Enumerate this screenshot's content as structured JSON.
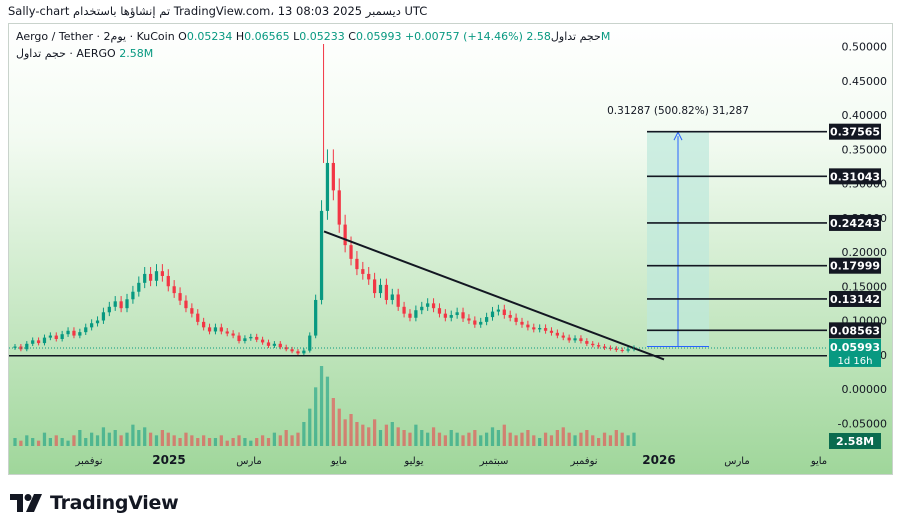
{
  "header": {
    "title_line": "Sally-chart تم إنشاؤها باستخدام TradingView.com، 13 ديسمبر 2025 08:03 UTC"
  },
  "legend": {
    "symbol": "Aergo / Tether · 2يوم · KuCoin",
    "open_label": "O",
    "open": "0.05234",
    "high_label": "H",
    "high": "0.06565",
    "low_label": "L",
    "low": "0.05233",
    "close_label": "C",
    "close": "0.05993",
    "change": "+0.00757 (+14.46%)",
    "volume_label": "حجم تداول",
    "volume": "2.58M",
    "line2_label": "حجم تداول · AERGO",
    "line2_value": "2.58M"
  },
  "colors": {
    "background_top": "#ffffff",
    "background_bottom": "#9fd69a",
    "up": "#089981",
    "down": "#f23645",
    "trendline": "#131722",
    "projection_fill": "#bde8dc",
    "projection_arrow": "#2962ff"
  },
  "chart_data": {
    "type": "candlestick",
    "price_axis_ticks": [
      "0.50000",
      "0.45000",
      "0.40000",
      "0.35000",
      "0.30000",
      "0.25000",
      "0.20000",
      "0.15000",
      "0.10000",
      "0.05000",
      "0.00000",
      "-0.05000"
    ],
    "time_axis_ticks": [
      "نوفمبر",
      "2025",
      "مارس",
      "مايو",
      "يوليو",
      "سبتمبر",
      "نوفمبر",
      "2026",
      "مارس",
      "مايو"
    ],
    "price_range": [
      -0.1,
      0.55
    ],
    "levels": [
      {
        "label": "0.37565",
        "value": 0.37565
      },
      {
        "label": "0.31043",
        "value": 0.31043
      },
      {
        "label": "0.24243",
        "value": 0.24243
      },
      {
        "label": "0.17999",
        "value": 0.17999
      },
      {
        "label": "0.13142",
        "value": 0.13142
      },
      {
        "label": "0.08563",
        "value": 0.08563
      },
      {
        "label": "0.04854",
        "value": 0.04854
      }
    ],
    "last_price": {
      "label": "0.05993",
      "value": 0.05993,
      "countdown": "1d 16h"
    },
    "projection_label": "0.31287 (500.82%) 31,287",
    "projection_from": 0.062,
    "projection_to": 0.375,
    "volume_badge": "2.58M",
    "trendline": {
      "from_value": 0.23,
      "to_value": 0.049
    },
    "support_value": 0.0485,
    "price_series": [
      0.062,
      0.058,
      0.066,
      0.071,
      0.067,
      0.075,
      0.078,
      0.073,
      0.08,
      0.085,
      0.078,
      0.083,
      0.09,
      0.096,
      0.1,
      0.112,
      0.12,
      0.128,
      0.118,
      0.131,
      0.142,
      0.155,
      0.168,
      0.158,
      0.172,
      0.165,
      0.15,
      0.14,
      0.129,
      0.118,
      0.11,
      0.098,
      0.09,
      0.084,
      0.09,
      0.084,
      0.081,
      0.078,
      0.07,
      0.074,
      0.076,
      0.072,
      0.068,
      0.063,
      0.066,
      0.061,
      0.058,
      0.055,
      0.052,
      0.056,
      0.078,
      0.13,
      0.26,
      0.33,
      0.29,
      0.24,
      0.21,
      0.19,
      0.175,
      0.168,
      0.16,
      0.14,
      0.152,
      0.13,
      0.138,
      0.12,
      0.11,
      0.104,
      0.115,
      0.12,
      0.125,
      0.118,
      0.11,
      0.104,
      0.108,
      0.112,
      0.103,
      0.1,
      0.094,
      0.098,
      0.105,
      0.113,
      0.116,
      0.108,
      0.104,
      0.098,
      0.094,
      0.09,
      0.087,
      0.089,
      0.085,
      0.082,
      0.078,
      0.075,
      0.071,
      0.074,
      0.07,
      0.066,
      0.064,
      0.062,
      0.06,
      0.059,
      0.057,
      0.056,
      0.058,
      0.06
    ],
    "volume_series": [
      3,
      2,
      4,
      3,
      2,
      5,
      3,
      4,
      3,
      2,
      4,
      6,
      3,
      5,
      4,
      7,
      5,
      6,
      4,
      5,
      8,
      6,
      7,
      5,
      4,
      6,
      5,
      4,
      3,
      5,
      4,
      3,
      4,
      3,
      3,
      4,
      2,
      3,
      4,
      3,
      2,
      3,
      4,
      3,
      5,
      4,
      6,
      4,
      5,
      9,
      14,
      22,
      30,
      26,
      18,
      14,
      10,
      12,
      9,
      8,
      7,
      10,
      6,
      8,
      9,
      7,
      6,
      5,
      8,
      6,
      5,
      7,
      5,
      4,
      6,
      5,
      4,
      5,
      6,
      4,
      5,
      7,
      6,
      8,
      5,
      4,
      5,
      6,
      4,
      3,
      5,
      4,
      6,
      7,
      5,
      4,
      5,
      6,
      4,
      3,
      5,
      4,
      6,
      5,
      4,
      5
    ]
  }
}
